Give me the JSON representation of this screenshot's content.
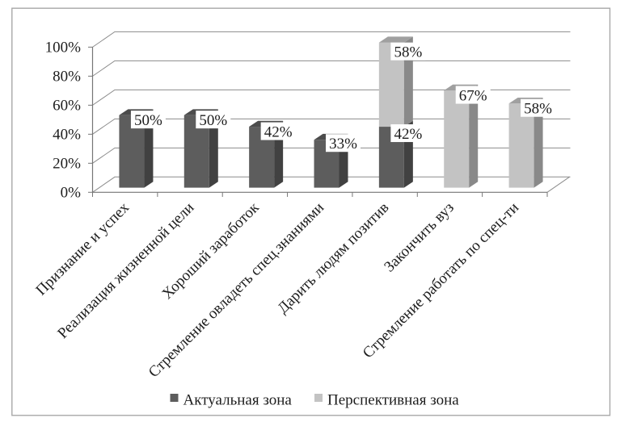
{
  "figure": {
    "background": "#ffffff",
    "border_color": "#a8a8a8"
  },
  "chart_data": {
    "type": "bar",
    "style": "3d-column-stacked",
    "title": "",
    "xlabel": "",
    "ylabel": "",
    "ylim": [
      0,
      100
    ],
    "ytick_step": 20,
    "ytick_labels": [
      "0%",
      "20%",
      "40%",
      "60%",
      "80%",
      "100%"
    ],
    "grid": true,
    "legend_position": "bottom",
    "categories": [
      "Признание и успех",
      "Реализация жизненной цели",
      "Хороший заработок",
      "Стремление овладеть спец.знаниями",
      "Дарить людям позитив",
      "Закончить вуз",
      "Стремление работать по спец-ти"
    ],
    "series": [
      {
        "name": "Актуальная зона",
        "color": "#5d5d5d",
        "values": [
          50,
          50,
          42,
          33,
          42,
          null,
          null
        ],
        "data_labels": [
          "50%",
          "50%",
          "42%",
          "33%",
          "42%",
          null,
          null
        ]
      },
      {
        "name": "Перспективная зона",
        "color": "#c3c3c3",
        "values": [
          null,
          null,
          null,
          null,
          58,
          67,
          58
        ],
        "data_labels": [
          null,
          null,
          null,
          null,
          "58%",
          "67%",
          "58%"
        ]
      }
    ],
    "data_label_style": {
      "background": "#ffffff",
      "color": "#1d1d1d"
    }
  }
}
